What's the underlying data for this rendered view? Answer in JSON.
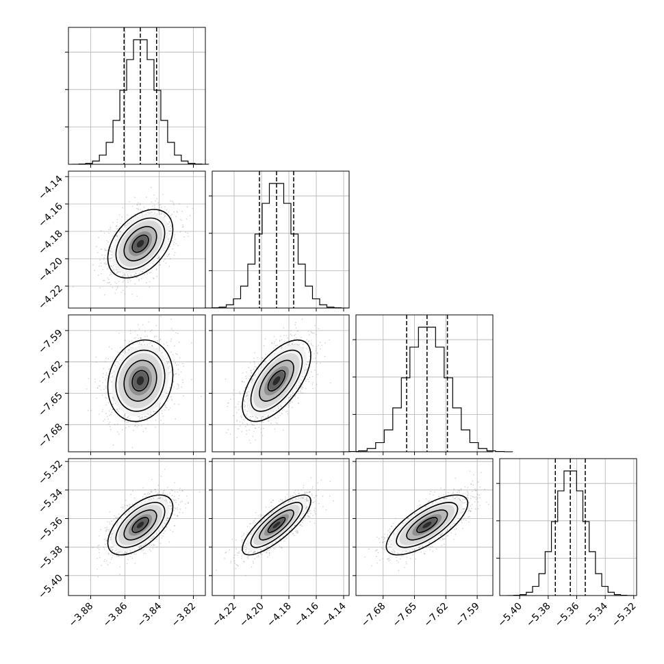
{
  "chart_data": {
    "type": "corner",
    "params": [
      {
        "id": "p0",
        "mean": -3.851,
        "sigma": 0.0095,
        "q16": -3.8605,
        "q50": -3.851,
        "q84": -3.8415,
        "range": [
          -3.893,
          -3.813
        ],
        "tick_labels": [
          {
            "value": -3.88,
            "label": "−3.88"
          },
          {
            "value": -3.86,
            "label": "−3.86"
          },
          {
            "value": -3.84,
            "label": "−3.84"
          },
          {
            "value": -3.82,
            "label": "−3.82"
          }
        ]
      },
      {
        "id": "p1",
        "mean": -4.189,
        "sigma": 0.0125,
        "q16": -4.2015,
        "q50": -4.189,
        "q84": -4.1765,
        "range": [
          -4.236,
          -4.136
        ],
        "tick_labels": [
          {
            "value": -4.22,
            "label": "−4.22"
          },
          {
            "value": -4.2,
            "label": "−4.20"
          },
          {
            "value": -4.18,
            "label": "−4.18"
          },
          {
            "value": -4.16,
            "label": "−4.16"
          },
          {
            "value": -4.14,
            "label": "−4.14"
          }
        ]
      },
      {
        "id": "p2",
        "mean": -7.638,
        "sigma": 0.0195,
        "q16": -7.6575,
        "q50": -7.638,
        "q84": -7.6185,
        "range": [
          -7.706,
          -7.575
        ],
        "tick_labels": [
          {
            "value": -7.68,
            "label": "−7.68"
          },
          {
            "value": -7.65,
            "label": "−7.65"
          },
          {
            "value": -7.62,
            "label": "−7.62"
          },
          {
            "value": -7.59,
            "label": "−7.59"
          }
        ]
      },
      {
        "id": "p3",
        "mean": -5.3645,
        "sigma": 0.0105,
        "q16": -5.375,
        "q50": -5.3645,
        "q84": -5.354,
        "range": [
          -5.414,
          -5.318
        ],
        "tick_labels": [
          {
            "value": -5.4,
            "label": "−5.40"
          },
          {
            "value": -5.38,
            "label": "−5.38"
          },
          {
            "value": -5.36,
            "label": "−5.36"
          },
          {
            "value": -5.34,
            "label": "−5.34"
          },
          {
            "value": -5.32,
            "label": "−5.32"
          }
        ]
      }
    ],
    "correlations": [
      {
        "row": 1,
        "col": 0,
        "rho": 0.42
      },
      {
        "row": 2,
        "col": 0,
        "rho": 0.15
      },
      {
        "row": 2,
        "col": 1,
        "rho": 0.62
      },
      {
        "row": 3,
        "col": 0,
        "rho": 0.6
      },
      {
        "row": 3,
        "col": 1,
        "rho": 0.8
      },
      {
        "row": 3,
        "col": 2,
        "rho": 0.72
      }
    ],
    "diagonal": "1D histogram with dashed 16/50/84% quantile lines",
    "off_diagonal": "2D histogram with grey samples and black density contours",
    "contour_levels_sigma": [
      0.5,
      1.0,
      1.5,
      2.0
    ],
    "hist_bins": 20,
    "grid": true,
    "axis_labels": [],
    "title": ""
  }
}
